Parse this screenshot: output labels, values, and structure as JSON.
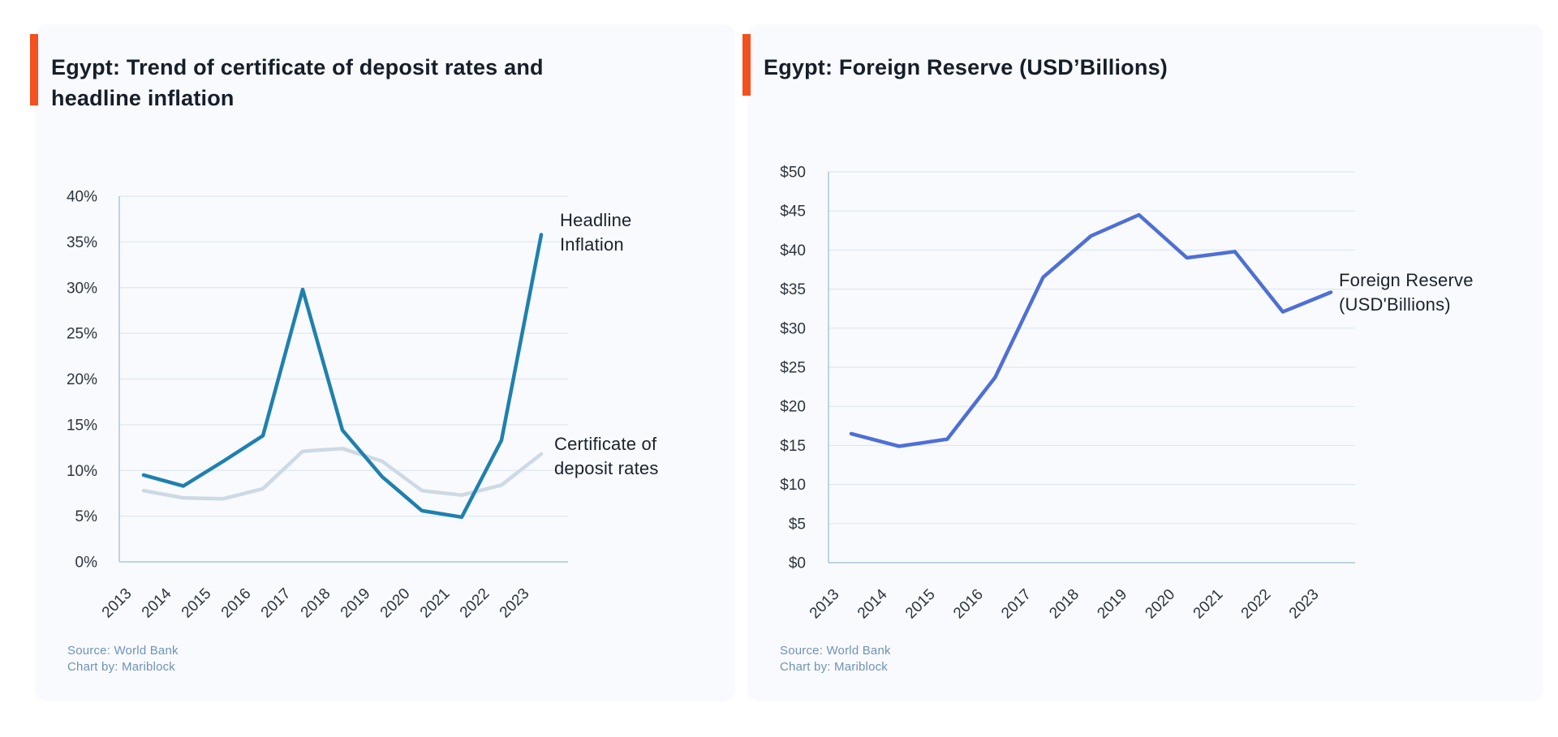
{
  "accent_color": "#F4511E",
  "chart_data": [
    {
      "type": "line",
      "title": "Egypt: Trend of certificate of deposit rates and headline inflation",
      "title_lines": [
        "Egypt: Trend of certificate of deposit rates and",
        "headline inflation"
      ],
      "categories": [
        "2013",
        "2014",
        "2015",
        "2016",
        "2017",
        "2018",
        "2019",
        "2020",
        "2021",
        "2022",
        "2023"
      ],
      "series": [
        {
          "name": "Headline Inflation",
          "label_lines": [
            "Headline",
            "Inflation"
          ],
          "color": "#1F80AE",
          "values": [
            9.5,
            8.3,
            11.0,
            13.8,
            29.8,
            14.4,
            9.3,
            5.6,
            4.9,
            13.3,
            35.8
          ]
        },
        {
          "name": "Certificate of deposit rates",
          "label_lines": [
            "Certificate of",
            "deposit rates"
          ],
          "color": "#CDD9E5",
          "values": [
            7.8,
            7.0,
            6.9,
            8.0,
            12.1,
            12.4,
            11.0,
            7.8,
            7.3,
            8.4,
            11.8
          ]
        }
      ],
      "ylim": [
        0,
        40
      ],
      "y_tick_labels": [
        "0%",
        "5%",
        "10%",
        "15%",
        "20%",
        "25%",
        "30%",
        "35%",
        "40%"
      ],
      "grid": true,
      "legend_position": "end-of-line-labels",
      "source": [
        "Source: World Bank",
        "Chart by: Mariblock"
      ]
    },
    {
      "type": "line",
      "title": "Egypt: Foreign Reserve (USD’Billions)",
      "title_lines": [
        "Egypt: Foreign Reserve (USD’Billions)"
      ],
      "categories": [
        "2013",
        "2014",
        "2015",
        "2016",
        "2017",
        "2018",
        "2019",
        "2020",
        "2021",
        "2022",
        "2023"
      ],
      "series": [
        {
          "name": "Foreign Reserve (USD'Billions)",
          "label_lines": [
            "Foreign Reserve",
            "(USD'Billions)"
          ],
          "color": "#4E6FD6",
          "values": [
            16.5,
            14.9,
            15.8,
            23.7,
            36.5,
            41.8,
            44.5,
            39.0,
            39.8,
            32.1,
            34.6
          ]
        }
      ],
      "ylim": [
        0,
        50
      ],
      "y_tick_labels": [
        "$0",
        "$5",
        "$10",
        "$15",
        "$20",
        "$25",
        "$30",
        "$35",
        "$40",
        "$45",
        "$50"
      ],
      "grid": true,
      "legend_position": "end-of-line-labels",
      "source": [
        "Source: World Bank",
        "Chart by: Mariblock"
      ]
    }
  ]
}
